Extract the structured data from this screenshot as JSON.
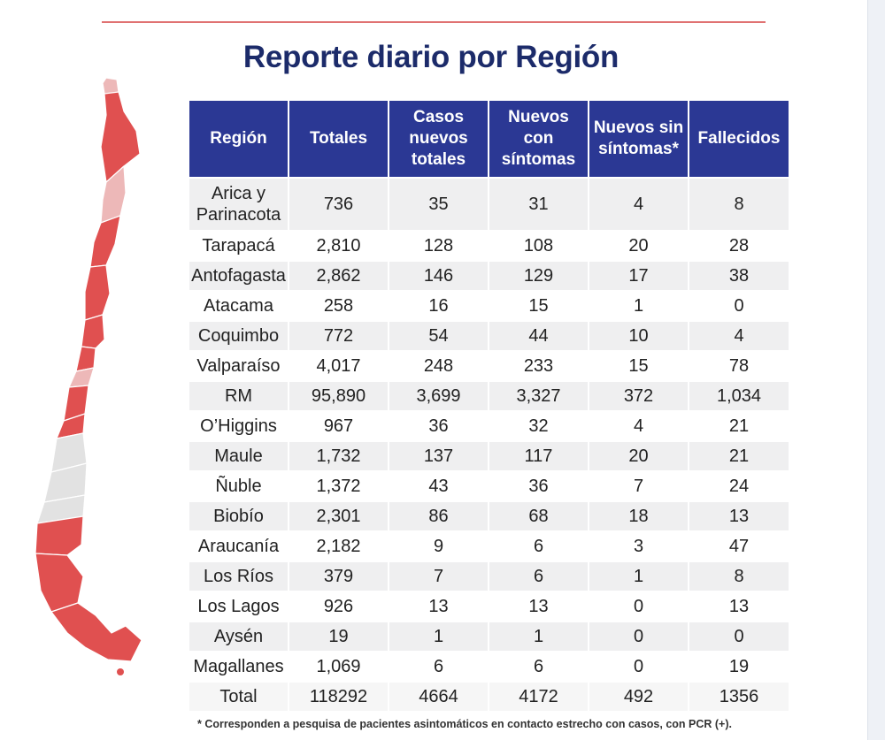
{
  "title": "Reporte diario por Región",
  "colors": {
    "header_bg": "#2b3894",
    "title": "#1c2b6a",
    "map_red": "#e05050",
    "map_light_red": "#edb8b8",
    "map_grey": "#e2e2e2"
  },
  "table": {
    "headers": {
      "region": "Región",
      "totales": "Totales",
      "casos_nuevos": "Casos nuevos totales",
      "con_sintomas": "Nuevos con síntomas",
      "sin_sintomas": "Nuevos sin síntomas*",
      "fallecidos": "Fallecidos"
    },
    "rows": [
      {
        "region": "Arica y Parinacota",
        "totales": "736",
        "casos_nuevos": "35",
        "con_sintomas": "31",
        "sin_sintomas": "4",
        "fallecidos": "8"
      },
      {
        "region": "Tarapacá",
        "totales": "2,810",
        "casos_nuevos": "128",
        "con_sintomas": "108",
        "sin_sintomas": "20",
        "fallecidos": "28"
      },
      {
        "region": "Antofagasta",
        "totales": "2,862",
        "casos_nuevos": "146",
        "con_sintomas": "129",
        "sin_sintomas": "17",
        "fallecidos": "38"
      },
      {
        "region": "Atacama",
        "totales": "258",
        "casos_nuevos": "16",
        "con_sintomas": "15",
        "sin_sintomas": "1",
        "fallecidos": "0"
      },
      {
        "region": "Coquimbo",
        "totales": "772",
        "casos_nuevos": "54",
        "con_sintomas": "44",
        "sin_sintomas": "10",
        "fallecidos": "4"
      },
      {
        "region": "Valparaíso",
        "totales": "4,017",
        "casos_nuevos": "248",
        "con_sintomas": "233",
        "sin_sintomas": "15",
        "fallecidos": "78"
      },
      {
        "region": "RM",
        "totales": "95,890",
        "casos_nuevos": "3,699",
        "con_sintomas": "3,327",
        "sin_sintomas": "372",
        "fallecidos": "1,034"
      },
      {
        "region": "O’Higgins",
        "totales": "967",
        "casos_nuevos": "36",
        "con_sintomas": "32",
        "sin_sintomas": "4",
        "fallecidos": "21"
      },
      {
        "region": "Maule",
        "totales": "1,732",
        "casos_nuevos": "137",
        "con_sintomas": "117",
        "sin_sintomas": "20",
        "fallecidos": "21"
      },
      {
        "region": "Ñuble",
        "totales": "1,372",
        "casos_nuevos": "43",
        "con_sintomas": "36",
        "sin_sintomas": "7",
        "fallecidos": "24"
      },
      {
        "region": "Biobío",
        "totales": "2,301",
        "casos_nuevos": "86",
        "con_sintomas": "68",
        "sin_sintomas": "18",
        "fallecidos": "13"
      },
      {
        "region": "Araucanía",
        "totales": "2,182",
        "casos_nuevos": "9",
        "con_sintomas": "6",
        "sin_sintomas": "3",
        "fallecidos": "47"
      },
      {
        "region": "Los Ríos",
        "totales": "379",
        "casos_nuevos": "7",
        "con_sintomas": "6",
        "sin_sintomas": "1",
        "fallecidos": "8"
      },
      {
        "region": "Los Lagos",
        "totales": "926",
        "casos_nuevos": "13",
        "con_sintomas": "13",
        "sin_sintomas": "0",
        "fallecidos": "13"
      },
      {
        "region": "Aysén",
        "totales": "19",
        "casos_nuevos": "1",
        "con_sintomas": "1",
        "sin_sintomas": "0",
        "fallecidos": "0"
      },
      {
        "region": "Magallanes",
        "totales": "1,069",
        "casos_nuevos": "6",
        "con_sintomas": "6",
        "sin_sintomas": "0",
        "fallecidos": "19"
      }
    ],
    "total_row": {
      "region": "Total",
      "totales": "118292",
      "casos_nuevos": "4664",
      "con_sintomas": "4172",
      "sin_sintomas": "492",
      "fallecidos": "1356"
    }
  },
  "footnote": "* Corresponden a pesquisa de pacientes asintomáticos en contacto estrecho con casos, con PCR (+)."
}
